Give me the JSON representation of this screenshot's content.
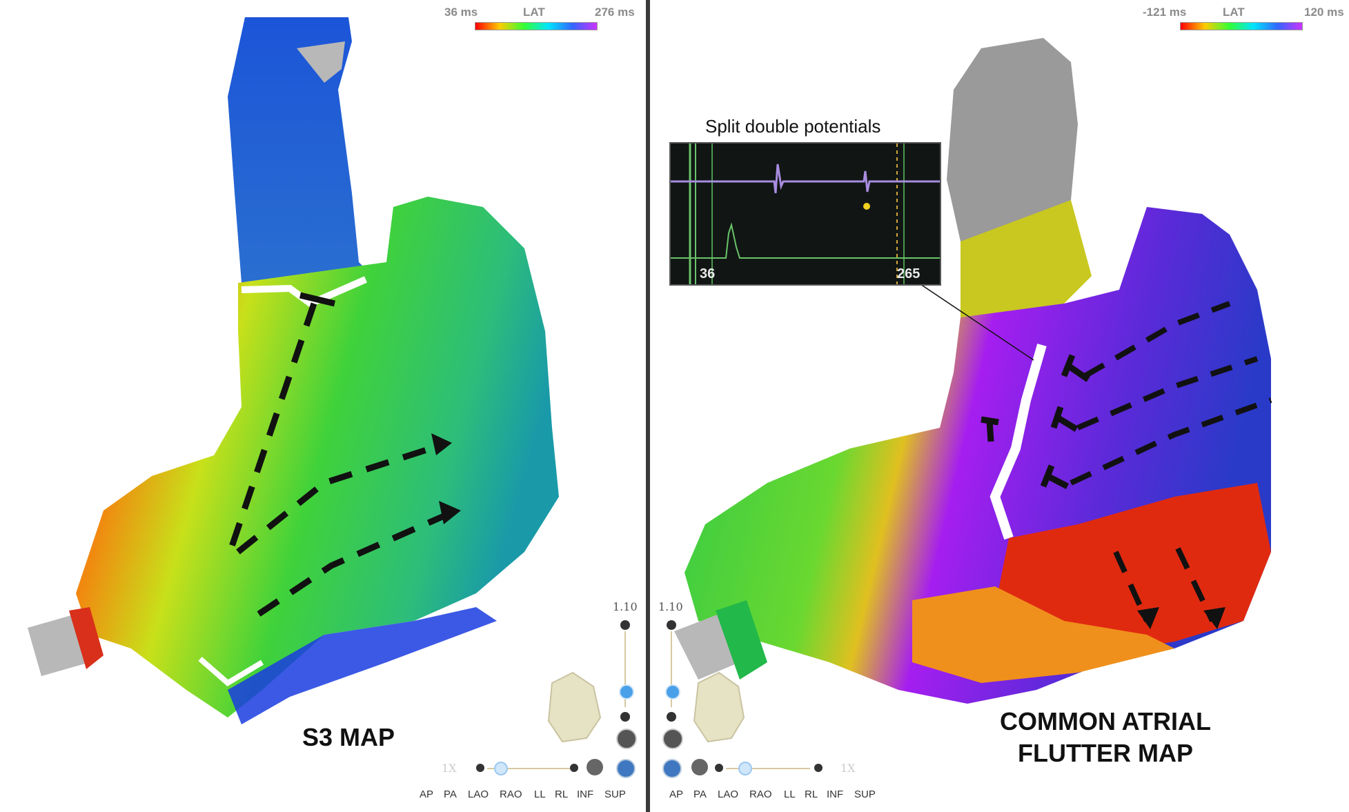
{
  "left_map": {
    "scale_min": "36 ms",
    "scale_title": "LAT",
    "scale_max": "276 ms",
    "label": "S3 MAP",
    "zoom": "1.10",
    "view_buttons": [
      "AP",
      "PA",
      "LAO",
      "RAO",
      "LL",
      "RL",
      "INF",
      "SUP"
    ],
    "dimmed_label": "1X"
  },
  "right_map": {
    "scale_min": "-121 ms",
    "scale_title": "LAT",
    "scale_max": "120 ms",
    "label_line1": "COMMON ATRIAL",
    "label_line2": "FLUTTER MAP",
    "zoom": "1.10",
    "view_buttons": [
      "AP",
      "PA",
      "LAO",
      "RAO",
      "LL",
      "RL",
      "INF",
      "SUP"
    ],
    "dimmed_label": "1X"
  },
  "electrogram": {
    "title": "Split double potentials",
    "value_left": "36",
    "value_right": "265"
  },
  "colors": {
    "divider": "#3a3a3a",
    "lat_scale": [
      "#ff0000",
      "#ffcc00",
      "#33ff33",
      "#00e5ff",
      "#3366ff",
      "#cc33ff"
    ],
    "electrogram_bg": "#111614"
  }
}
